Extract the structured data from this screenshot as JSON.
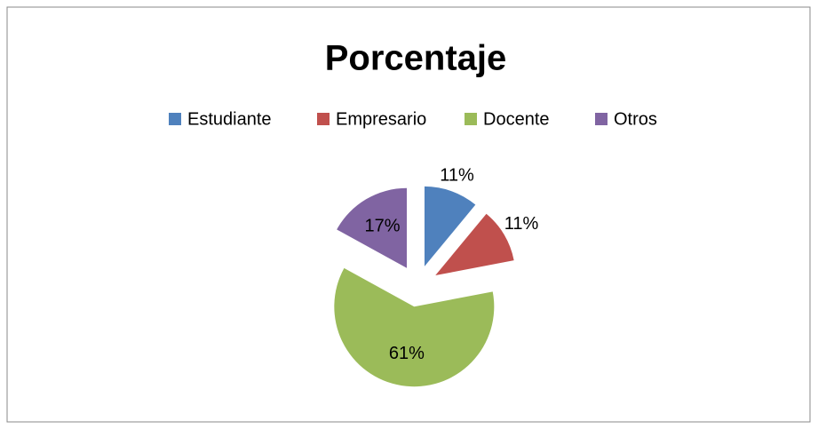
{
  "chart_data": {
    "type": "pie",
    "title": "Porcentaje",
    "categories": [
      "Estudiante",
      "Empresario",
      "Docente",
      "Otros"
    ],
    "values": [
      11,
      11,
      61,
      17
    ],
    "value_labels": [
      "11%",
      "11%",
      "61%",
      "17%"
    ],
    "colors": [
      "#4f81bd",
      "#c0504d",
      "#9bbb59",
      "#8064a2"
    ],
    "legend": "top"
  }
}
